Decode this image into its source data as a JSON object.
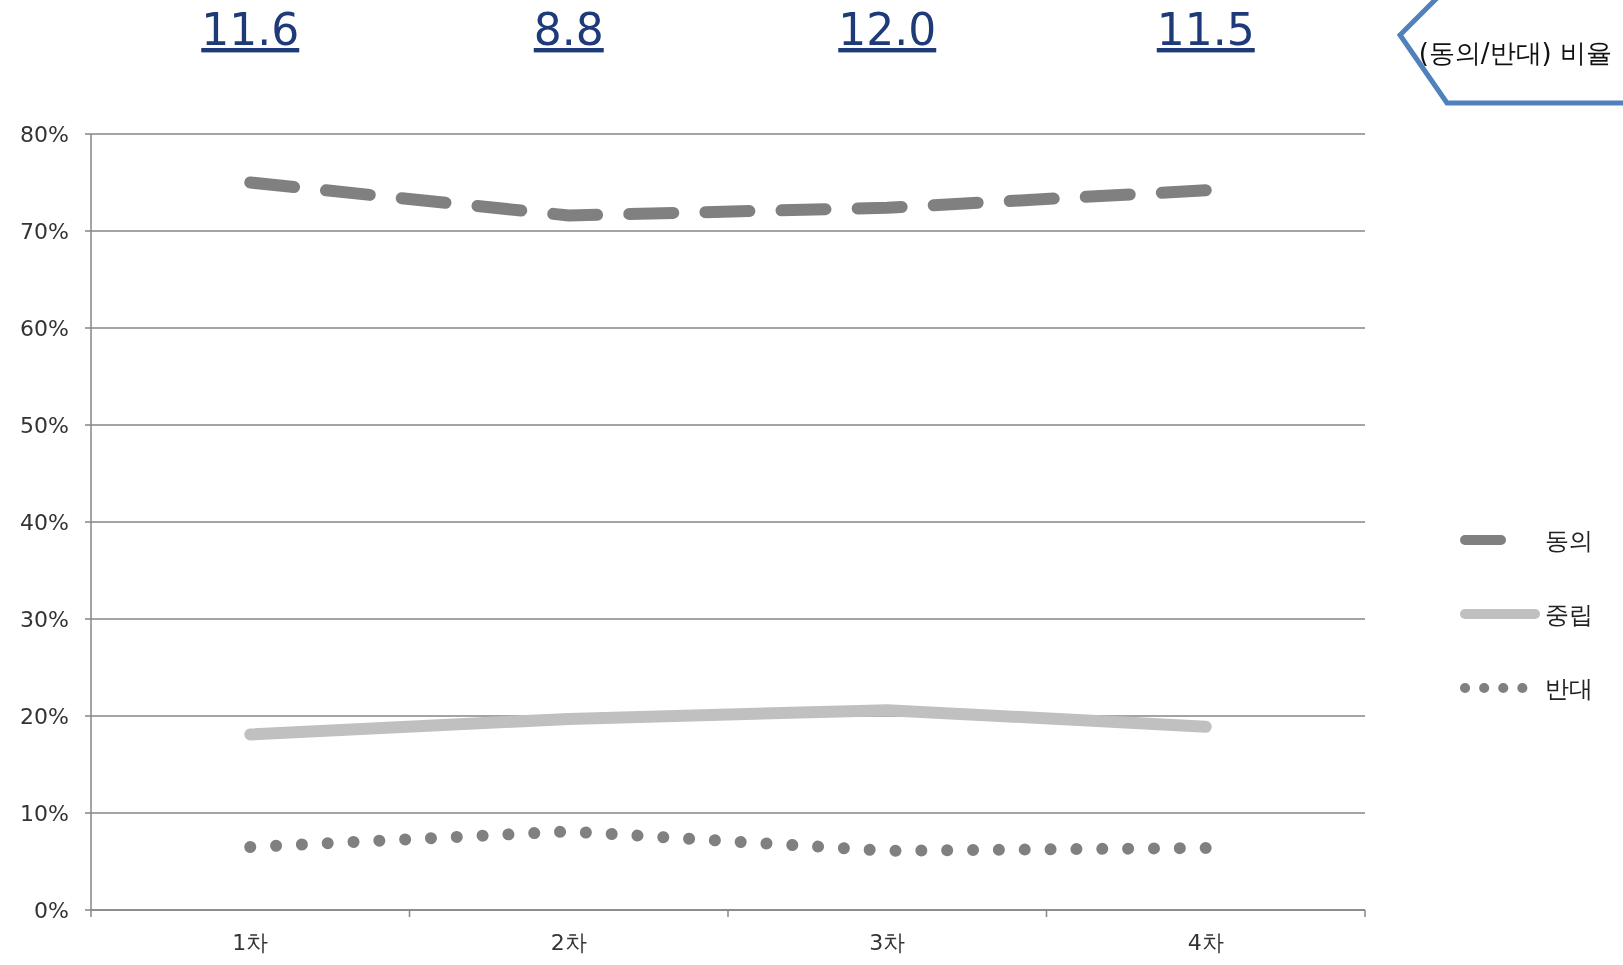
{
  "chart_data": {
    "type": "line",
    "categories": [
      "1차",
      "2차",
      "3차",
      "4차"
    ],
    "series": [
      {
        "name": "동의",
        "color": "#808080",
        "line_style": "dashed",
        "values": [
          75.0,
          71.6,
          72.4,
          74.2
        ]
      },
      {
        "name": "중립",
        "color": "#c0c0c0",
        "line_style": "solid",
        "values": [
          18.1,
          19.7,
          20.6,
          18.9
        ]
      },
      {
        "name": "반대",
        "color": "#808080",
        "line_style": "dotted",
        "values": [
          6.5,
          8.1,
          6.1,
          6.4
        ]
      }
    ],
    "ylim": [
      0,
      80
    ],
    "yticks": [
      {
        "value": 0,
        "label": "0%"
      },
      {
        "value": 10,
        "label": "10%"
      },
      {
        "value": 20,
        "label": "20%"
      },
      {
        "value": 30,
        "label": "30%"
      },
      {
        "value": 40,
        "label": "40%"
      },
      {
        "value": 50,
        "label": "50%"
      },
      {
        "value": 60,
        "label": "60%"
      },
      {
        "value": 70,
        "label": "70%"
      },
      {
        "value": 80,
        "label": "80%"
      }
    ],
    "grid": "y",
    "legend": "right",
    "annotations": [
      "11.6",
      "8.8",
      "12.0",
      "11.5",
      "(동의/반대) 비율"
    ]
  }
}
